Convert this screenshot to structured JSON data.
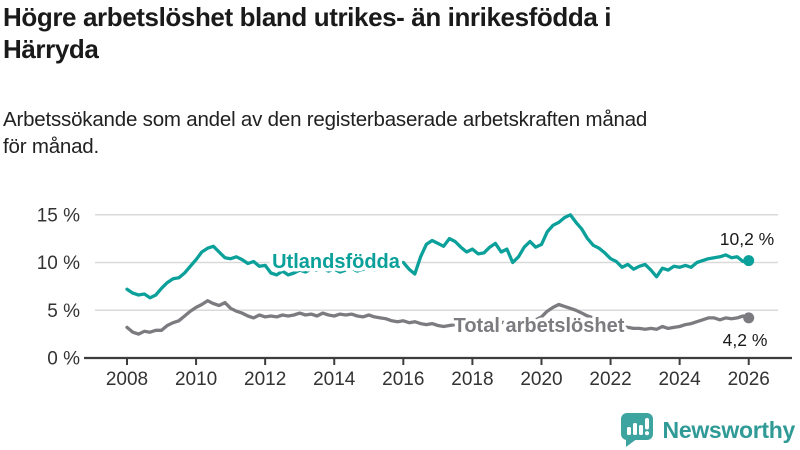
{
  "header": {
    "title_lines": [
      "Högre arbetslöshet bland utrikes- än inrikesfödda i",
      "Härryda"
    ],
    "subtitle_lines": [
      "Arbetssökande som andel av den registerbaserade arbetskraften månad",
      "för månad."
    ]
  },
  "chart_data": {
    "type": "line",
    "title": "Högre arbetslöshet bland utrikes- än inrikesfödda i Härryda",
    "subtitle": "Arbetssökande som andel av den registerbaserade arbetskraften månad för månad.",
    "grid": true,
    "legend": "inline-labels-on-lines",
    "y_axis": {
      "unit": "%",
      "range": [
        0,
        15.6
      ],
      "tick_values": [
        0,
        5,
        10,
        15
      ],
      "tick_labels": [
        "0 %",
        "5 %",
        "10 %",
        "15 %"
      ]
    },
    "x_axis": {
      "range": [
        2008,
        2026
      ],
      "tick_values": [
        2008,
        2010,
        2012,
        2014,
        2016,
        2018,
        2020,
        2022,
        2024,
        2026
      ],
      "tick_labels": [
        "2008",
        "2010",
        "2012",
        "2014",
        "2016",
        "2018",
        "2020",
        "2022",
        "2024",
        "2026"
      ]
    },
    "x0": 2008,
    "dx_years": 0.1666667,
    "x_end": 2026,
    "series": [
      {
        "name": "Utlandsfödda",
        "color": "#0ca09a",
        "end_value": 10.2,
        "end_label": "10,2 %",
        "values": [
          7.2,
          6.8,
          6.6,
          6.7,
          6.3,
          6.6,
          7.3,
          7.9,
          8.3,
          8.4,
          8.9,
          9.6,
          10.3,
          11.1,
          11.5,
          11.7,
          11.1,
          10.5,
          10.4,
          10.6,
          10.3,
          9.9,
          10.1,
          9.6,
          9.7,
          8.9,
          8.7,
          9.1,
          8.7,
          8.9,
          9.2,
          9.0,
          9.3,
          9.2,
          9.4,
          9.1,
          9.3,
          9.0,
          9.2,
          9.4,
          9.1,
          9.3,
          9.5,
          9.2,
          9.4,
          9.6,
          9.3,
          9.7,
          10.0,
          9.3,
          8.8,
          10.6,
          11.9,
          12.3,
          12.0,
          11.7,
          12.5,
          12.2,
          11.6,
          11.1,
          11.4,
          10.9,
          11.0,
          11.6,
          12.0,
          11.1,
          11.4,
          10.0,
          10.6,
          11.6,
          12.2,
          11.6,
          11.9,
          13.2,
          13.9,
          14.2,
          14.7,
          15.0,
          14.2,
          13.5,
          12.5,
          11.8,
          11.5,
          11.0,
          10.4,
          10.1,
          9.5,
          9.8,
          9.3,
          9.6,
          9.8,
          9.2,
          8.5,
          9.4,
          9.2,
          9.6,
          9.5,
          9.7,
          9.5,
          10.0,
          10.2,
          10.4,
          10.5,
          10.6,
          10.8,
          10.5,
          10.6,
          10.1,
          10.2
        ]
      },
      {
        "name": "Total arbetslöshet",
        "color": "#7c7c80",
        "end_value": 4.2,
        "end_label": "4,2 %",
        "values": [
          3.2,
          2.7,
          2.5,
          2.8,
          2.7,
          2.9,
          2.9,
          3.4,
          3.7,
          3.9,
          4.4,
          4.9,
          5.3,
          5.6,
          6.0,
          5.7,
          5.5,
          5.8,
          5.2,
          4.9,
          4.7,
          4.4,
          4.2,
          4.5,
          4.3,
          4.4,
          4.3,
          4.5,
          4.4,
          4.5,
          4.7,
          4.5,
          4.6,
          4.4,
          4.7,
          4.5,
          4.4,
          4.6,
          4.5,
          4.6,
          4.4,
          4.3,
          4.5,
          4.3,
          4.2,
          4.1,
          3.9,
          3.8,
          3.9,
          3.7,
          3.8,
          3.6,
          3.5,
          3.6,
          3.4,
          3.3,
          3.4,
          3.5,
          3.4,
          3.5,
          3.6,
          3.5,
          3.6,
          3.7,
          3.6,
          3.7,
          3.8,
          3.7,
          3.8,
          3.9,
          3.8,
          4.0,
          4.3,
          4.9,
          5.3,
          5.6,
          5.4,
          5.2,
          5.0,
          4.7,
          4.4,
          4.2,
          4.0,
          3.8,
          3.6,
          3.4,
          3.3,
          3.2,
          3.1,
          3.1,
          3.0,
          3.1,
          3.0,
          3.3,
          3.1,
          3.2,
          3.3,
          3.5,
          3.6,
          3.8,
          4.0,
          4.2,
          4.2,
          4.0,
          4.2,
          4.1,
          4.2,
          4.4,
          4.2
        ]
      }
    ],
    "annotations": [
      "10,2 %",
      "4,2 %"
    ]
  },
  "branding": {
    "logo_text": "Newsworthy",
    "logo_icon": "bar-chart-speech-bubble-icon",
    "icon_color": "#3da49f",
    "icon_marks_color": "#ffffff",
    "text_color": "#2f9a96"
  },
  "colors": {
    "background": "#ffffff",
    "gridline": "#d9d9d9",
    "axis": "#3d3d3d",
    "tick_label": "#333333",
    "title_text": "#1a1a1a",
    "value_label_text": "#1a1a1a"
  }
}
